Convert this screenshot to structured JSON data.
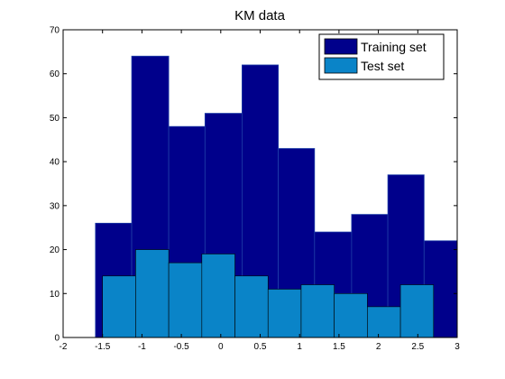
{
  "chart_data": {
    "type": "bar",
    "title": "KM data",
    "xlabel": "",
    "ylabel": "",
    "xlim": [
      -2,
      3
    ],
    "ylim": [
      0,
      70
    ],
    "xticks": [
      -2,
      -1.5,
      -1,
      -0.5,
      0,
      0.5,
      1,
      1.5,
      2,
      2.5,
      3
    ],
    "xtick_labels": [
      "-2",
      "-1.5",
      "-1",
      "-0.5",
      "0",
      "0.5",
      "1",
      "1.5",
      "2",
      "2.5",
      "3"
    ],
    "yticks": [
      0,
      10,
      20,
      30,
      40,
      50,
      60,
      70
    ],
    "ytick_labels": [
      "0",
      "10",
      "20",
      "30",
      "40",
      "50",
      "60",
      "70"
    ],
    "grid": false,
    "legend_position": "top-right",
    "series": [
      {
        "name": "Training set",
        "color": "#00008b",
        "edges": [
          -1.59,
          -1.13,
          -0.66,
          -0.2,
          0.27,
          0.73,
          1.19,
          1.66,
          2.12,
          2.58,
          3.05
        ],
        "values": [
          26,
          64,
          48,
          51,
          62,
          43,
          24,
          28,
          37,
          22
        ]
      },
      {
        "name": "Test set",
        "color": "#0a84c8",
        "edges": [
          -1.5,
          -1.08,
          -0.66,
          -0.24,
          0.18,
          0.6,
          1.02,
          1.44,
          1.86,
          2.28,
          2.7
        ],
        "values": [
          14,
          20,
          17,
          19,
          14,
          11,
          12,
          10,
          7,
          12
        ]
      }
    ]
  }
}
